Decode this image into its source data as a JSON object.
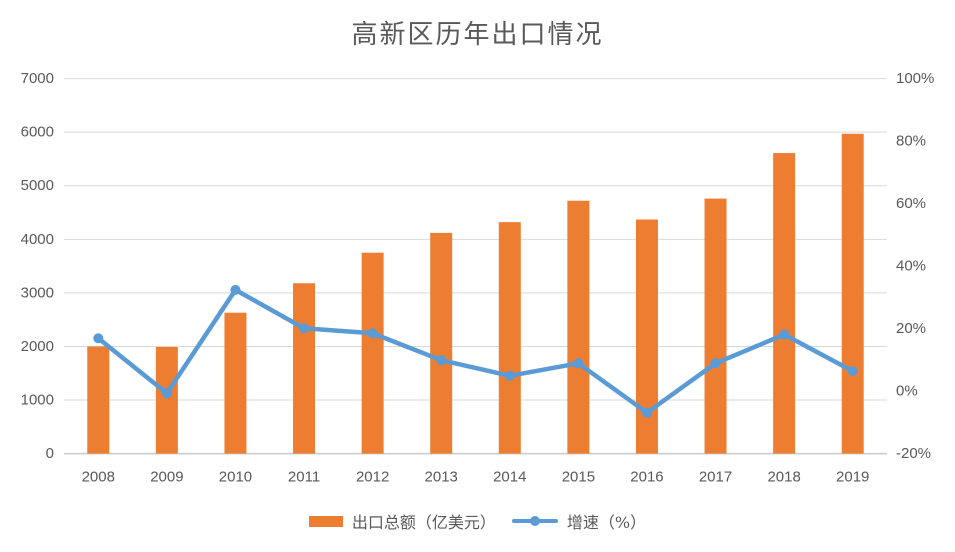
{
  "title": "高新区历年出口情况",
  "chart_data": {
    "type": "bar+line",
    "title": "高新区历年出口情况",
    "categories": [
      "2008",
      "2009",
      "2010",
      "2011",
      "2012",
      "2013",
      "2014",
      "2015",
      "2016",
      "2017",
      "2018",
      "2019"
    ],
    "series": [
      {
        "name": "出口总额（亿美元）",
        "type": "bar",
        "axis": "left",
        "color": "#ED7D31",
        "values": [
          2000,
          1990,
          2630,
          3180,
          3750,
          4120,
          4320,
          4720,
          4370,
          4760,
          5610,
          5970
        ]
      },
      {
        "name": "增速（%）",
        "type": "line",
        "axis": "right",
        "color": "#5B9BD5",
        "values": [
          16.9,
          -0.7,
          32.4,
          20.1,
          18.5,
          9.9,
          4.9,
          8.9,
          -6.9,
          8.9,
          18.1,
          6.4
        ]
      }
    ],
    "left_axis": {
      "min": 0,
      "max": 7000,
      "step": 1000,
      "tick_labels": [
        "0",
        "1000",
        "2000",
        "3000",
        "4000",
        "5000",
        "6000",
        "7000"
      ]
    },
    "right_axis": {
      "min": -20,
      "max": 100,
      "step": 20,
      "tick_labels": [
        "-20%",
        "0%",
        "20%",
        "40%",
        "60%",
        "80%",
        "100%"
      ]
    },
    "grid": true,
    "legend_position": "bottom"
  },
  "colors": {
    "grid": "#D9D9D9",
    "axis_line": "#C9C9C9",
    "text": "#595959",
    "background": "#FFFFFF"
  }
}
